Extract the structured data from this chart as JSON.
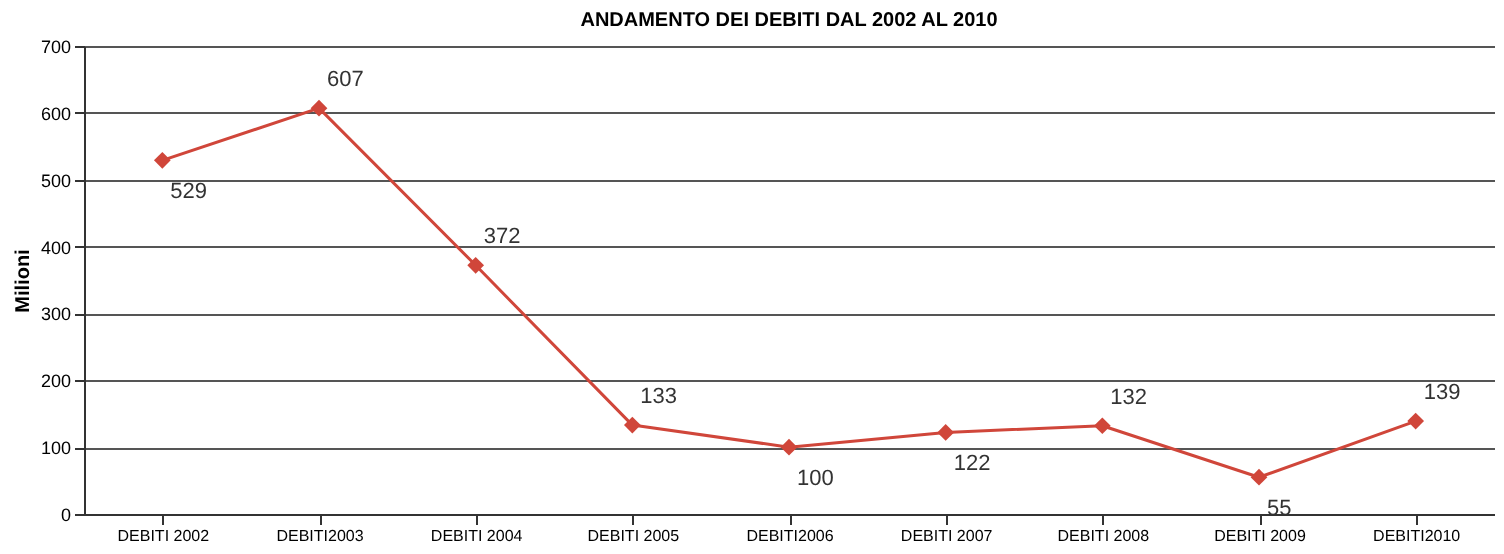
{
  "chart_data": {
    "type": "line",
    "title": "ANDAMENTO DEI DEBITI DAL 2002 AL 2010",
    "ylabel": "Milioni",
    "categories": [
      "DEBITI 2002",
      "DEBITI2003",
      "DEBITI 2004",
      "DEBITI 2005",
      "DEBITI2006",
      "DEBITI 2007",
      "DEBITI 2008",
      "DEBITI 2009",
      "DEBITI2010"
    ],
    "series": [
      {
        "color": "#d0463a",
        "values": [
          529,
          607,
          372,
          133,
          100,
          122,
          132,
          55,
          139
        ]
      }
    ],
    "ylim": [
      0,
      700
    ],
    "yticks": [
      0,
      100,
      200,
      300,
      400,
      500,
      600,
      700
    ],
    "grid": "y",
    "marker": "diamond",
    "line_style": "solid",
    "data_labels": true
  }
}
